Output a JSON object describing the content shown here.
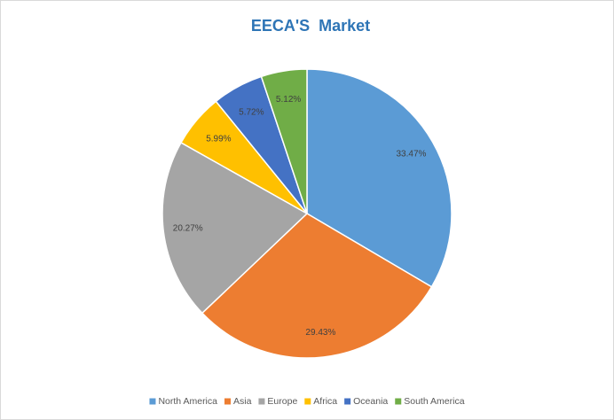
{
  "chart_data": {
    "type": "pie",
    "title": "EECA'S  Market",
    "categories": [
      "North America",
      "Asia",
      "Europe",
      "Africa",
      "Oceania",
      "South America"
    ],
    "values": [
      33.47,
      29.43,
      20.27,
      5.99,
      5.72,
      5.12
    ],
    "value_labels": [
      "33.47%",
      "29.43%",
      "20.27%",
      "5.99%",
      "5.72%",
      "5.12%"
    ],
    "colors": [
      "#5b9bd5",
      "#ed7d31",
      "#a5a5a5",
      "#ffc000",
      "#4472c4",
      "#70ad47"
    ],
    "legend": "bottom"
  }
}
